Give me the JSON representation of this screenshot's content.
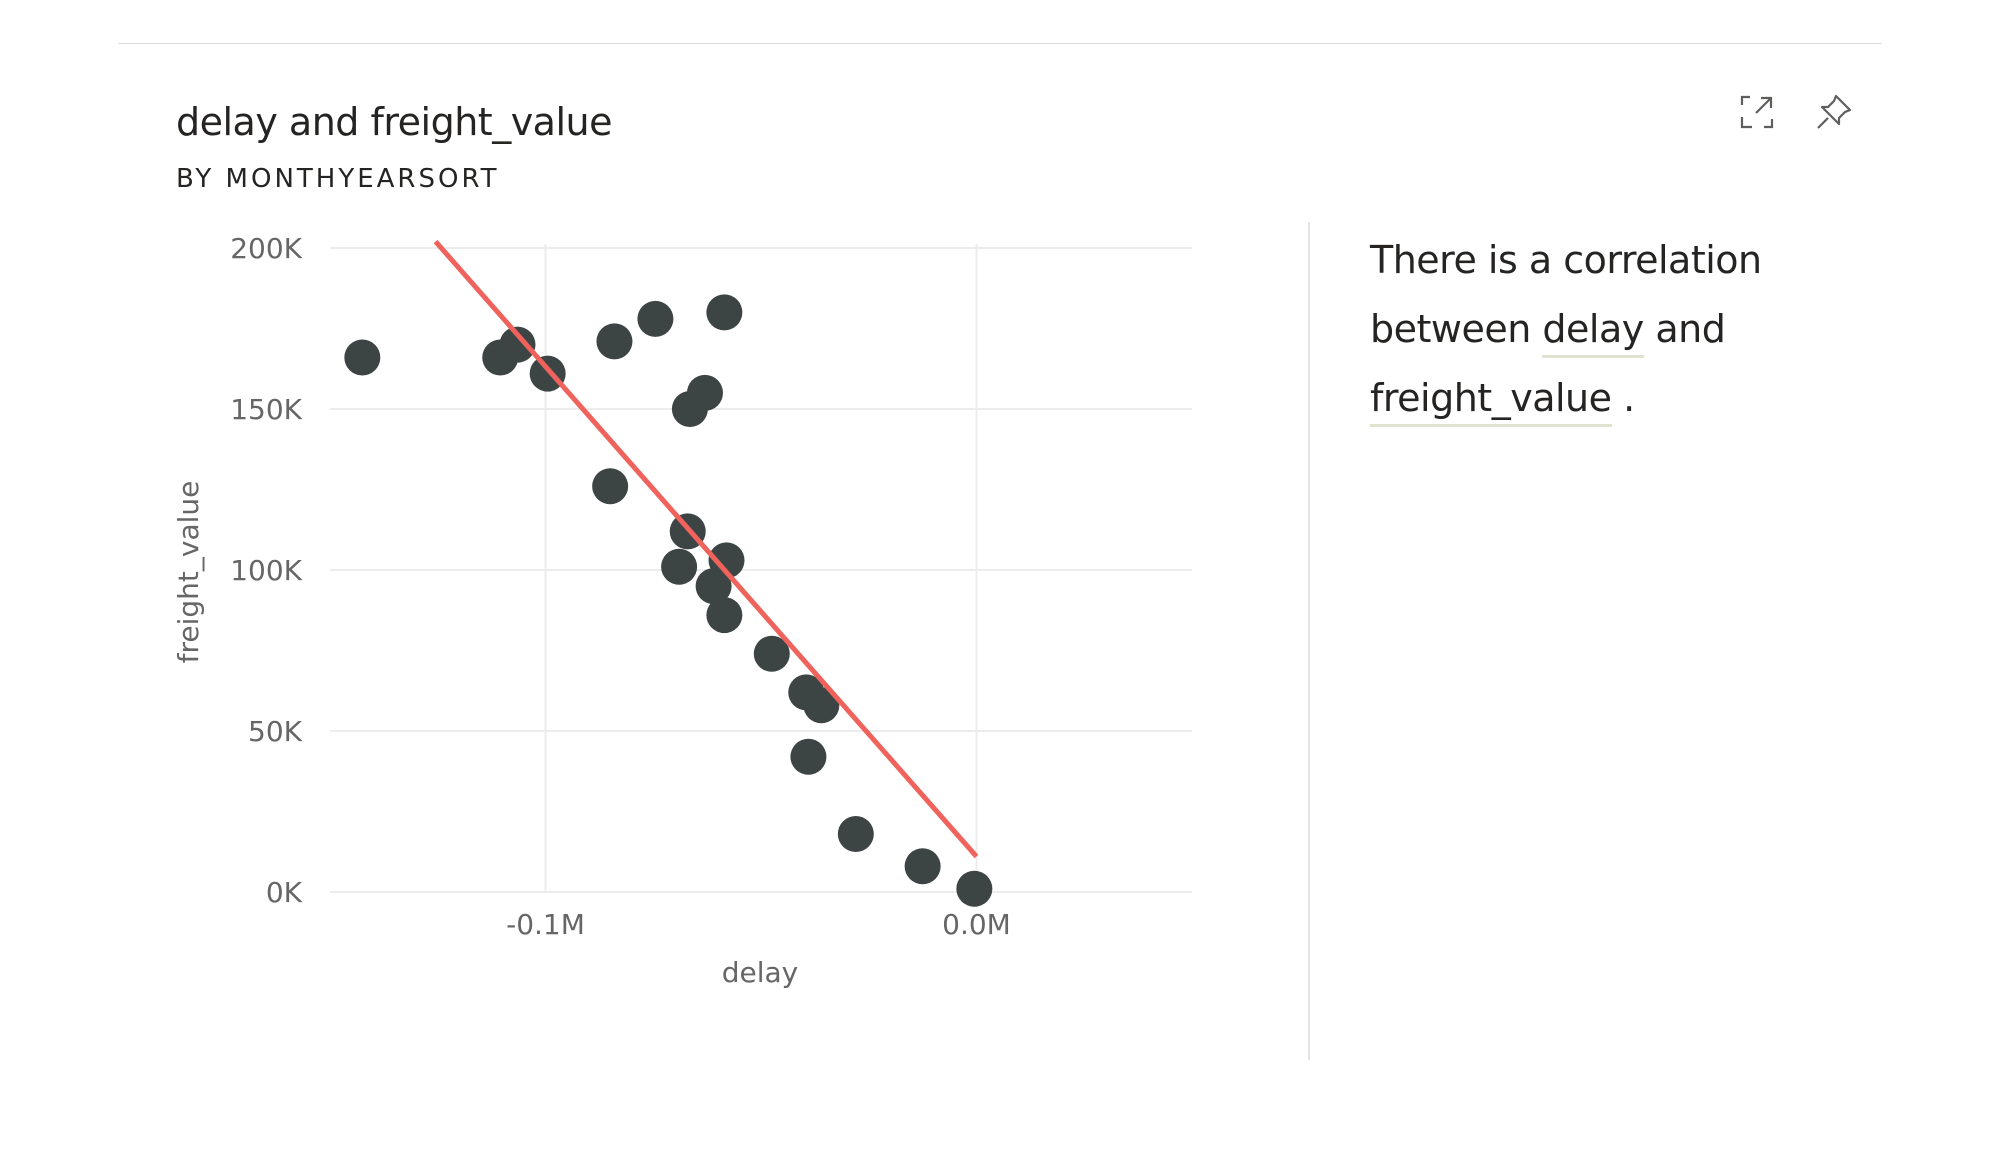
{
  "header": {
    "title": "delay and freight_value",
    "subtitle": "BY MONTHYEARSORT"
  },
  "toolbar": {
    "focus_icon": "focus-mode-icon",
    "pin_icon": "pin-icon"
  },
  "insight": {
    "prefix": "There is a correlation between",
    "term1": "delay",
    "middle": "and",
    "term2": "freight_value",
    "suffix": "."
  },
  "colors": {
    "points": "#3c4544",
    "trendline": "#f0625c",
    "grid": "#ececec",
    "text": "#252423",
    "axis_text": "#666666"
  },
  "chart_data": {
    "type": "scatter",
    "title": "delay and freight_value",
    "subtitle": "BY MONTHYEARSORT",
    "xlabel": "delay",
    "ylabel": "freight_value",
    "xlim": [
      -0.15,
      0.05
    ],
    "ylim": [
      0,
      200000
    ],
    "x_unit": "M",
    "x_ticks": [
      -0.1,
      0.0
    ],
    "x_tick_labels": [
      "-0.1M",
      "0.0M"
    ],
    "y_ticks": [
      0,
      50000,
      100000,
      150000,
      200000
    ],
    "y_tick_labels": [
      "0K",
      "50K",
      "100K",
      "150K",
      "200K"
    ],
    "grid": true,
    "points": [
      {
        "x": -0.1425,
        "y": 166000
      },
      {
        "x": -0.1105,
        "y": 166000
      },
      {
        "x": -0.1065,
        "y": 170000
      },
      {
        "x": -0.0995,
        "y": 161000
      },
      {
        "x": -0.084,
        "y": 171000
      },
      {
        "x": -0.0745,
        "y": 178000
      },
      {
        "x": -0.0585,
        "y": 180000
      },
      {
        "x": -0.063,
        "y": 155000
      },
      {
        "x": -0.0665,
        "y": 150000
      },
      {
        "x": -0.085,
        "y": 126000
      },
      {
        "x": -0.067,
        "y": 112000
      },
      {
        "x": -0.058,
        "y": 103000
      },
      {
        "x": -0.069,
        "y": 101000
      },
      {
        "x": -0.061,
        "y": 95000
      },
      {
        "x": -0.0585,
        "y": 86000
      },
      {
        "x": -0.0475,
        "y": 74000
      },
      {
        "x": -0.0395,
        "y": 62000
      },
      {
        "x": -0.036,
        "y": 58000
      },
      {
        "x": -0.039,
        "y": 42000
      },
      {
        "x": -0.028,
        "y": 18000
      },
      {
        "x": -0.0125,
        "y": 8000
      },
      {
        "x": -0.0005,
        "y": 1000
      }
    ],
    "trendline": {
      "x": [
        -0.1255,
        0.0
      ],
      "y": [
        202000,
        11000
      ]
    }
  }
}
